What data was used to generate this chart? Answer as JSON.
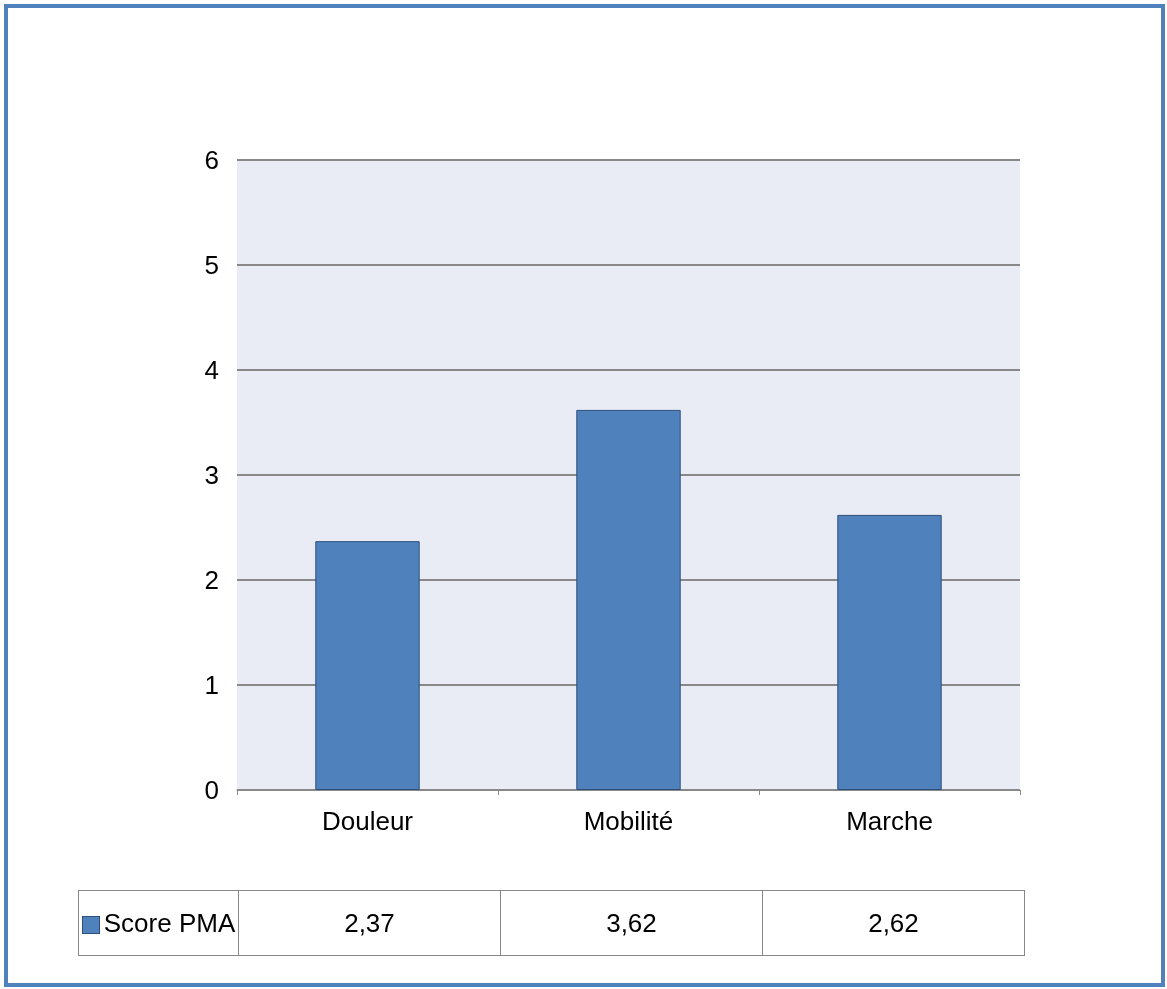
{
  "chart_data": {
    "type": "bar",
    "categories": [
      "Douleur",
      "Mobilité",
      "Marche"
    ],
    "series": [
      {
        "name": "Score PMA",
        "color": "#4f81bd",
        "values": [
          2.37,
          3.62,
          2.62
        ],
        "value_labels": [
          "2,37",
          "3,62",
          "2,62"
        ]
      }
    ],
    "ylim": [
      0,
      6
    ],
    "yticks": [
      0,
      1,
      2,
      3,
      4,
      5,
      6
    ],
    "grid": "y",
    "legend": "bottom"
  }
}
